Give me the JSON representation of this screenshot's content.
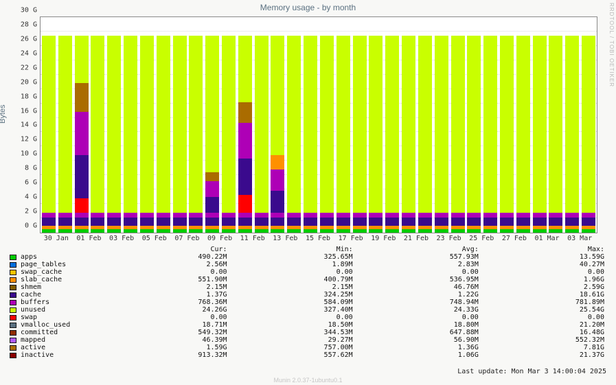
{
  "title": "Memory usage - by month",
  "ylabel": "Bytes",
  "rrd_brand": "RRDTOOL / TOBI OETIKER",
  "plot": {
    "bg": "#ffffff",
    "grid_color": "#d6d6d6",
    "ymax_gb": 30,
    "ytick_step_gb": 2,
    "y_unit": "G",
    "xlabels": [
      "30 Jan",
      "01 Feb",
      "03 Feb",
      "05 Feb",
      "07 Feb",
      "09 Feb",
      "11 Feb",
      "13 Feb",
      "15 Feb",
      "17 Feb",
      "19 Feb",
      "21 Feb",
      "23 Feb",
      "25 Feb",
      "27 Feb",
      "01 Mar",
      "03 Mar"
    ],
    "bars": {
      "count": 34,
      "bottom_band_gb": 2.8,
      "bottom_layers": [
        {
          "name": "apps",
          "color": "#00cc00",
          "h": 0.5
        },
        {
          "name": "slab_cache",
          "color": "#ff9000",
          "h": 0.45
        },
        {
          "name": "cache",
          "color": "#3a0a8d",
          "h": 1.2
        },
        {
          "name": "buffers",
          "color": "#ae00b6",
          "h": 0.65
        }
      ],
      "unused_color": "#c9ff00",
      "top_gb": 27.4,
      "spikes": {
        "2": {
          "extra_gb": 18.0,
          "layers": [
            {
              "c": "#ff0000",
              "h": 2
            },
            {
              "c": "#3a0a8d",
              "h": 6
            },
            {
              "c": "#ae00b6",
              "h": 6
            },
            {
              "c": "#aa6c00",
              "h": 4
            }
          ],
          "line_to_gb": 20.8
        },
        "10": {
          "extra_gb": 5.6,
          "layers": [
            {
              "c": "#3a0a8d",
              "h": 2.2
            },
            {
              "c": "#ae00b6",
              "h": 2.2
            },
            {
              "c": "#aa6c00",
              "h": 1.2
            }
          ]
        },
        "12": {
          "extra_gb": 15.4,
          "layers": [
            {
              "c": "#ff0000",
              "h": 2.5
            },
            {
              "c": "#3a0a8d",
              "h": 5
            },
            {
              "c": "#ae00b6",
              "h": 5
            },
            {
              "c": "#aa6c00",
              "h": 2.9
            }
          ],
          "line_to_gb": 23.8
        },
        "14": {
          "extra_gb": 8.0,
          "layers": [
            {
              "c": "#3a0a8d",
              "h": 3
            },
            {
              "c": "#ae00b6",
              "h": 3
            },
            {
              "c": "#ff9000",
              "h": 2
            }
          ],
          "line_to_gb": 10.6
        }
      }
    }
  },
  "legend": {
    "headers": [
      "Cur:",
      "Min:",
      "Avg:",
      "Max:"
    ],
    "rows": [
      {
        "name": "apps",
        "color": "#00cc00",
        "cur": "490.22M",
        "min": "325.65M",
        "avg": "557.93M",
        "max": "13.59G"
      },
      {
        "name": "page_tables",
        "color": "#006edd",
        "cur": "2.56M",
        "min": "1.89M",
        "avg": "2.83M",
        "max": "40.27M"
      },
      {
        "name": "swap_cache",
        "color": "#ffc400",
        "cur": "0.00",
        "min": "0.00",
        "avg": "0.00",
        "max": "0.00"
      },
      {
        "name": "slab_cache",
        "color": "#ff9000",
        "cur": "551.90M",
        "min": "400.79M",
        "avg": "536.95M",
        "max": "1.96G"
      },
      {
        "name": "shmem",
        "color": "#7f5a00",
        "cur": "2.15M",
        "min": "2.15M",
        "avg": "46.76M",
        "max": "2.59G"
      },
      {
        "name": "cache",
        "color": "#3a0a8d",
        "cur": "1.37G",
        "min": "324.25M",
        "avg": "1.22G",
        "max": "18.61G"
      },
      {
        "name": "buffers",
        "color": "#ae00b6",
        "cur": "768.36M",
        "min": "584.09M",
        "avg": "748.94M",
        "max": "781.89M"
      },
      {
        "name": "unused",
        "color": "#c9ff00",
        "cur": "24.26G",
        "min": "327.40M",
        "avg": "24.33G",
        "max": "25.54G"
      },
      {
        "name": "swap",
        "color": "#ff0000",
        "cur": "0.00",
        "min": "0.00",
        "avg": "0.00",
        "max": "0.00"
      },
      {
        "name": "vmalloc_used",
        "color": "#5a7080",
        "cur": "18.71M",
        "min": "18.50M",
        "avg": "18.80M",
        "max": "21.20M"
      },
      {
        "name": "committed",
        "color": "#8f2d00",
        "cur": "549.32M",
        "min": "344.53M",
        "avg": "647.88M",
        "max": "16.48G"
      },
      {
        "name": "mapped",
        "color": "#b05aff",
        "cur": "46.39M",
        "min": "29.27M",
        "avg": "56.90M",
        "max": "552.32M"
      },
      {
        "name": "active",
        "color": "#aa6c00",
        "cur": "1.59G",
        "min": "757.00M",
        "avg": "1.36G",
        "max": "7.81G"
      },
      {
        "name": "inactive",
        "color": "#8a0000",
        "cur": "913.32M",
        "min": "557.62M",
        "avg": "1.06G",
        "max": "21.37G"
      }
    ]
  },
  "footer": "Last update: Mon Mar  3 14:00:04 2025",
  "credit": "Munin 2.0.37-1ubuntu0.1"
}
